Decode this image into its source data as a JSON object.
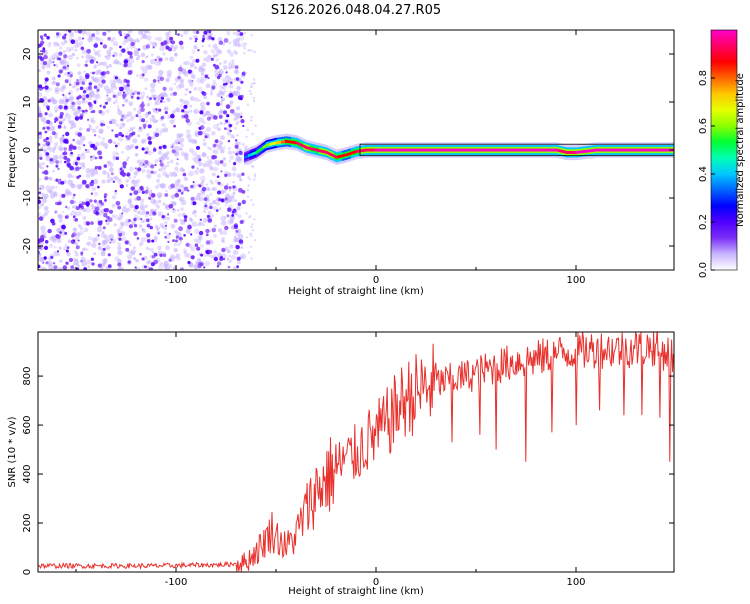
{
  "figure_title": "S126.2026.048.04.27.R05",
  "chart_data": [
    {
      "type": "heatmap",
      "title": "S126.2026.048.04.27.R05",
      "xlabel": "Height of straight line (km)",
      "ylabel": "Frequency (Hz)",
      "xlim": [
        -169,
        149
      ],
      "ylim": [
        -25,
        25
      ],
      "xticks": [
        -100,
        0,
        100
      ],
      "yticks": [
        -20,
        -10,
        0,
        10,
        20
      ],
      "colorbar": {
        "label": "Normalized spectral amplitude",
        "range": [
          0,
          1
        ],
        "ticks": [
          0.0,
          0.2,
          0.4,
          0.6,
          0.8
        ],
        "colors": [
          "#ffffff",
          "#c8b4ff",
          "#7b2ff7",
          "#5000ff",
          "#0000ff",
          "#0064ff",
          "#00c8ff",
          "#00ffb4",
          "#00ff32",
          "#8cff00",
          "#e6ff00",
          "#ffc800",
          "#ff6400",
          "#ff0000",
          "#ff0064",
          "#ff00c8"
        ]
      },
      "noise_region_x": [
        -169,
        -66
      ],
      "ridge": {
        "x": [
          -66,
          -60,
          -55,
          -50,
          -45,
          -40,
          -35,
          -30,
          -25,
          -20,
          -15,
          -10,
          -5,
          0,
          10,
          20,
          40,
          60,
          80,
          90,
          95,
          100,
          110,
          120,
          130,
          140,
          149
        ],
        "frequency": [
          -1.5,
          -0.5,
          1,
          1.5,
          1.8,
          1.5,
          0.5,
          0,
          -0.5,
          -1.5,
          -1,
          -0.3,
          0,
          0,
          0,
          0,
          0,
          0,
          0,
          0,
          -0.5,
          -0.5,
          0,
          0,
          0,
          0,
          0
        ],
        "amplitude": [
          0.3,
          0.5,
          0.6,
          0.7,
          0.85,
          0.9,
          0.92,
          0.9,
          0.95,
          0.9,
          0.85,
          0.9,
          0.95,
          0.97,
          0.97,
          0.97,
          0.97,
          0.97,
          0.97,
          0.97,
          0.95,
          0.97,
          0.97,
          0.97,
          0.97,
          0.97,
          0.97
        ]
      }
    },
    {
      "type": "line",
      "xlabel": "Height of straight line (km)",
      "ylabel": "SNR (10 * v/v)",
      "xlim": [
        -169,
        149
      ],
      "ylim": [
        0,
        980
      ],
      "xticks": [
        -100,
        0,
        100
      ],
      "yticks": [
        0,
        200,
        400,
        600,
        800
      ],
      "series": [
        {
          "name": "SNR",
          "color": "#e8302c",
          "x": [
            -169,
            -140,
            -110,
            -90,
            -75,
            -65,
            -58,
            -52,
            -45,
            -40,
            -35,
            -30,
            -25,
            -20,
            -15,
            -10,
            -5,
            0,
            5,
            10,
            15,
            20,
            25,
            30,
            40,
            50,
            60,
            70,
            80,
            90,
            100,
            110,
            120,
            130,
            140,
            149
          ],
          "y": [
            25,
            25,
            25,
            28,
            30,
            40,
            100,
            170,
            100,
            150,
            250,
            330,
            380,
            420,
            460,
            480,
            530,
            560,
            600,
            660,
            710,
            730,
            750,
            770,
            790,
            810,
            840,
            860,
            870,
            890,
            900,
            910,
            910,
            915,
            920,
            880
          ],
          "dips": [
            {
              "x": 38,
              "y": 530
            },
            {
              "x": 52,
              "y": 560
            },
            {
              "x": 60,
              "y": 500
            },
            {
              "x": 75,
              "y": 450
            },
            {
              "x": 88,
              "y": 570
            },
            {
              "x": 100,
              "y": 600
            },
            {
              "x": 112,
              "y": 660
            },
            {
              "x": 124,
              "y": 640
            },
            {
              "x": 133,
              "y": 640
            },
            {
              "x": 142,
              "y": 630
            },
            {
              "x": 147,
              "y": 450
            }
          ]
        }
      ]
    }
  ]
}
